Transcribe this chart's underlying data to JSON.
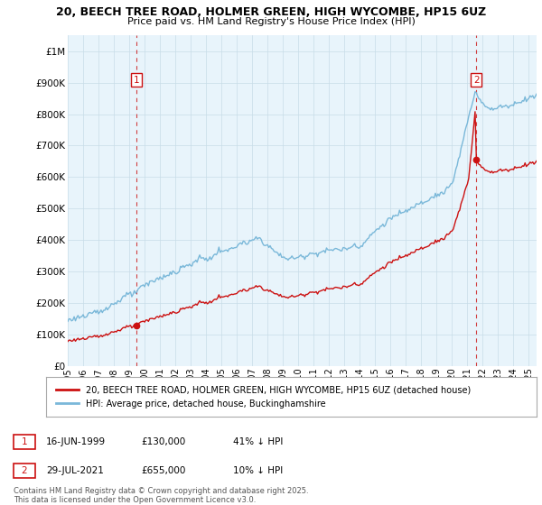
{
  "title_line1": "20, BEECH TREE ROAD, HOLMER GREEN, HIGH WYCOMBE, HP15 6UZ",
  "title_line2": "Price paid vs. HM Land Registry's House Price Index (HPI)",
  "ytick_values": [
    0,
    100000,
    200000,
    300000,
    400000,
    500000,
    600000,
    700000,
    800000,
    900000,
    1000000
  ],
  "ylim": [
    0,
    1050000
  ],
  "xlim_start": 1995.0,
  "xlim_end": 2025.5,
  "sale1_x": 1999.46,
  "sale1_y": 130000,
  "sale1_label": "1",
  "sale2_x": 2021.58,
  "sale2_y": 655000,
  "sale2_label": "2",
  "hpi_color": "#7ab8d9",
  "price_color": "#cc1111",
  "dashed_color": "#cc1111",
  "chart_bg": "#e8f4fb",
  "legend_line1": "20, BEECH TREE ROAD, HOLMER GREEN, HIGH WYCOMBE, HP15 6UZ (detached house)",
  "legend_line2": "HPI: Average price, detached house, Buckinghamshire",
  "note1_label": "1",
  "note1_date": "16-JUN-1999",
  "note1_price": "£130,000",
  "note1_hpi": "41% ↓ HPI",
  "note2_label": "2",
  "note2_date": "29-JUL-2021",
  "note2_price": "£655,000",
  "note2_hpi": "10% ↓ HPI",
  "footer": "Contains HM Land Registry data © Crown copyright and database right 2025.\nThis data is licensed under the Open Government Licence v3.0.",
  "background_color": "#ffffff",
  "grid_color": "#c8dce8"
}
